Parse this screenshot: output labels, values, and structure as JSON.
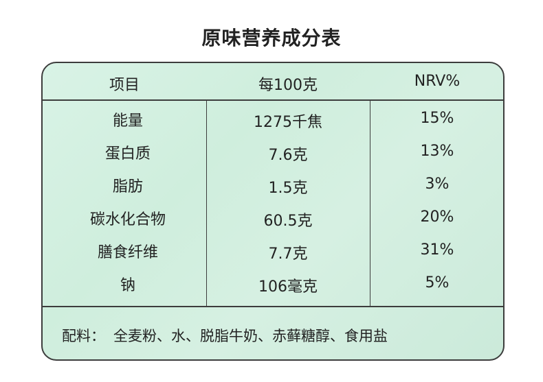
{
  "title": "原味营养成分表",
  "table": {
    "headers": [
      "项目",
      "每100克",
      "NRV%"
    ],
    "rows": [
      {
        "item": "能量",
        "per100g": "1275千焦",
        "nrv": "15%"
      },
      {
        "item": "蛋白质",
        "per100g": "7.6克",
        "nrv": "13%"
      },
      {
        "item": "脂肪",
        "per100g": "1.5克",
        "nrv": "3%"
      },
      {
        "item": "碳水化合物",
        "per100g": "60.5克",
        "nrv": "20%"
      },
      {
        "item": "膳食纤维",
        "per100g": "7.7克",
        "nrv": "31%"
      },
      {
        "item": "钠",
        "per100g": "106毫克",
        "nrv": "5%"
      }
    ]
  },
  "ingredients": {
    "label": "配料：",
    "text": "全麦粉、水、脱脂牛奶、赤藓糖醇、食用盐"
  },
  "colors": {
    "card_bg": "#d6f0e2",
    "border": "#3c3c3c",
    "text": "#222222"
  }
}
